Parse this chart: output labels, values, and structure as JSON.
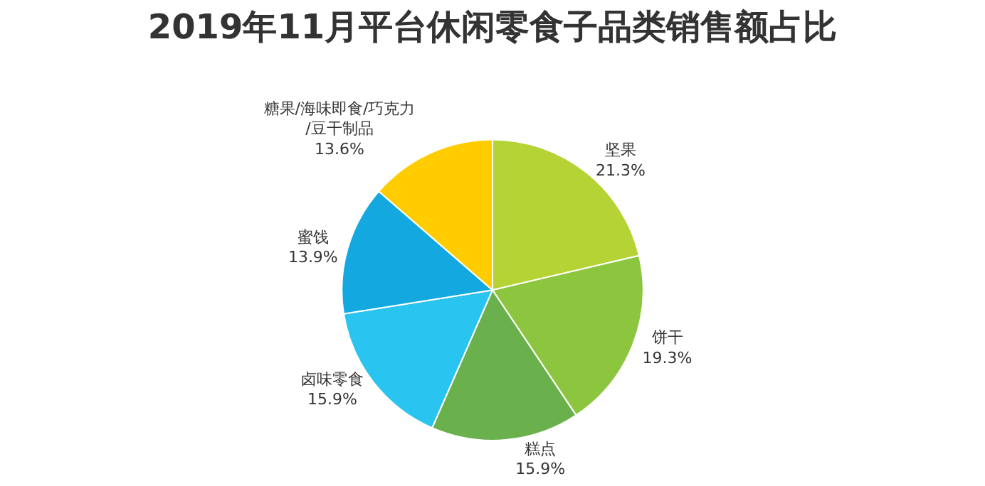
{
  "chart_data": {
    "type": "pie",
    "title": "2019年11月平台休闲零食子品类销售额占比",
    "categories": [
      "坚果",
      "饼干",
      "糕点",
      "卤味零食",
      "蜜饯",
      "糖果/海味即食/巧克力/豆干制品"
    ],
    "values": [
      21.3,
      19.3,
      15.9,
      15.9,
      13.9,
      13.6
    ],
    "value_labels": [
      "21.3%",
      "19.3%",
      "15.9%",
      "15.9%",
      "13.9%",
      "13.6%"
    ],
    "colors": [
      "#b5d334",
      "#8cc63f",
      "#6ab04c",
      "#29c4f0",
      "#14a8e0",
      "#ffcc00"
    ],
    "legend": false
  }
}
